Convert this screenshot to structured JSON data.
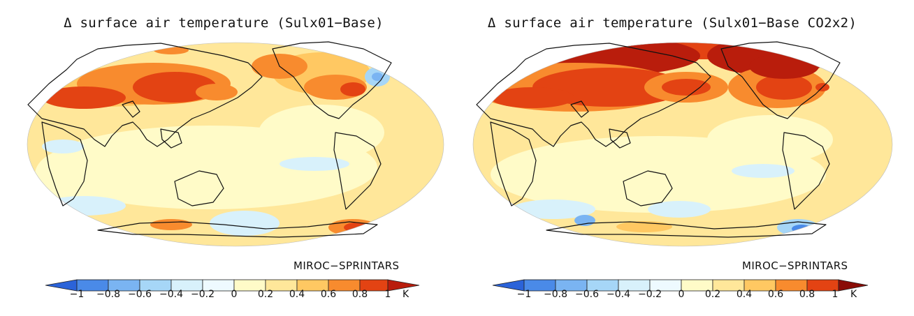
{
  "panels": [
    {
      "title": "Δ surface air temperature (Sulx01−Base)",
      "model": "MIROC−SPRINTARS"
    },
    {
      "title": "Δ surface air temperature (Sulx01−Base CO2x2)",
      "model": "MIROC−SPRINTARS"
    }
  ],
  "colorbar": {
    "unit": "K",
    "ticks": [
      "−1",
      "−0.8",
      "−0.6",
      "−0.4",
      "−0.2",
      "0",
      "0.2",
      "0.4",
      "0.6",
      "0.8",
      "1"
    ],
    "colors": [
      "#2b63d9",
      "#4a8ae8",
      "#7ab4f2",
      "#a6d6f7",
      "#d8f1fb",
      "#fffbc8",
      "#ffe79a",
      "#ffc862",
      "#f88b2e",
      "#e34313",
      "#b91d0c",
      "#8a0c06"
    ]
  }
}
